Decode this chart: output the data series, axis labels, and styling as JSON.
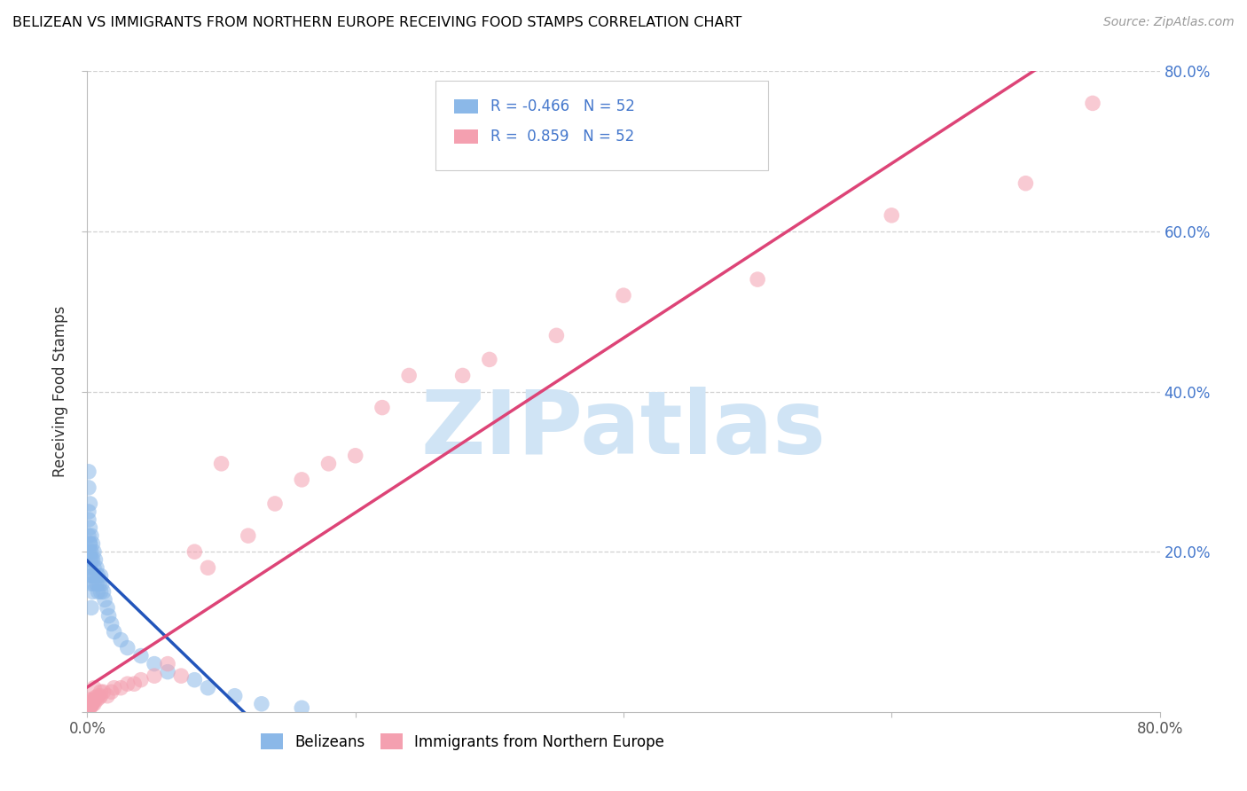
{
  "title": "BELIZEAN VS IMMIGRANTS FROM NORTHERN EUROPE RECEIVING FOOD STAMPS CORRELATION CHART",
  "source": "Source: ZipAtlas.com",
  "ylabel": "Receiving Food Stamps",
  "legend_labels": [
    "Belizeans",
    "Immigrants from Northern Europe"
  ],
  "r_belizean": -0.466,
  "r_northern": 0.859,
  "n": 52,
  "color_blue": "#8BB8E8",
  "color_pink": "#F4A0B0",
  "color_blue_line": "#2255BB",
  "color_pink_line": "#DD4477",
  "color_axis_label": "#4477CC",
  "watermark": "ZIPatlas",
  "watermark_color": "#D0E4F5",
  "xlim": [
    0.0,
    0.8
  ],
  "ylim": [
    0.0,
    0.8
  ],
  "blue_x": [
    0.001,
    0.001,
    0.001,
    0.001,
    0.001,
    0.001,
    0.002,
    0.002,
    0.002,
    0.002,
    0.002,
    0.002,
    0.003,
    0.003,
    0.003,
    0.003,
    0.003,
    0.004,
    0.004,
    0.004,
    0.004,
    0.005,
    0.005,
    0.005,
    0.006,
    0.006,
    0.007,
    0.007,
    0.008,
    0.008,
    0.009,
    0.01,
    0.01,
    0.011,
    0.012,
    0.013,
    0.015,
    0.016,
    0.018,
    0.02,
    0.025,
    0.03,
    0.04,
    0.05,
    0.06,
    0.08,
    0.09,
    0.11,
    0.13,
    0.16,
    0.002,
    0.003
  ],
  "blue_y": [
    0.28,
    0.3,
    0.25,
    0.24,
    0.22,
    0.2,
    0.26,
    0.23,
    0.21,
    0.2,
    0.19,
    0.18,
    0.22,
    0.2,
    0.19,
    0.17,
    0.16,
    0.21,
    0.19,
    0.17,
    0.15,
    0.2,
    0.18,
    0.16,
    0.19,
    0.17,
    0.18,
    0.16,
    0.17,
    0.15,
    0.16,
    0.17,
    0.15,
    0.16,
    0.15,
    0.14,
    0.13,
    0.12,
    0.11,
    0.1,
    0.09,
    0.08,
    0.07,
    0.06,
    0.05,
    0.04,
    0.03,
    0.02,
    0.01,
    0.005,
    0.21,
    0.13
  ],
  "pink_x": [
    0.001,
    0.001,
    0.001,
    0.001,
    0.002,
    0.002,
    0.002,
    0.002,
    0.003,
    0.003,
    0.003,
    0.004,
    0.004,
    0.005,
    0.005,
    0.006,
    0.007,
    0.008,
    0.009,
    0.01,
    0.01,
    0.012,
    0.015,
    0.018,
    0.02,
    0.025,
    0.03,
    0.035,
    0.04,
    0.05,
    0.06,
    0.07,
    0.08,
    0.09,
    0.1,
    0.12,
    0.14,
    0.16,
    0.18,
    0.2,
    0.22,
    0.24,
    0.28,
    0.3,
    0.35,
    0.4,
    0.5,
    0.6,
    0.7,
    0.75,
    0.002,
    0.005
  ],
  "pink_y": [
    0.005,
    0.01,
    0.008,
    0.015,
    0.005,
    0.01,
    0.012,
    0.008,
    0.01,
    0.015,
    0.008,
    0.012,
    0.01,
    0.015,
    0.01,
    0.018,
    0.015,
    0.02,
    0.018,
    0.025,
    0.02,
    0.025,
    0.02,
    0.025,
    0.03,
    0.03,
    0.035,
    0.035,
    0.04,
    0.045,
    0.06,
    0.045,
    0.2,
    0.18,
    0.31,
    0.22,
    0.26,
    0.29,
    0.31,
    0.32,
    0.38,
    0.42,
    0.42,
    0.44,
    0.47,
    0.52,
    0.54,
    0.62,
    0.66,
    0.76,
    0.008,
    0.03
  ]
}
